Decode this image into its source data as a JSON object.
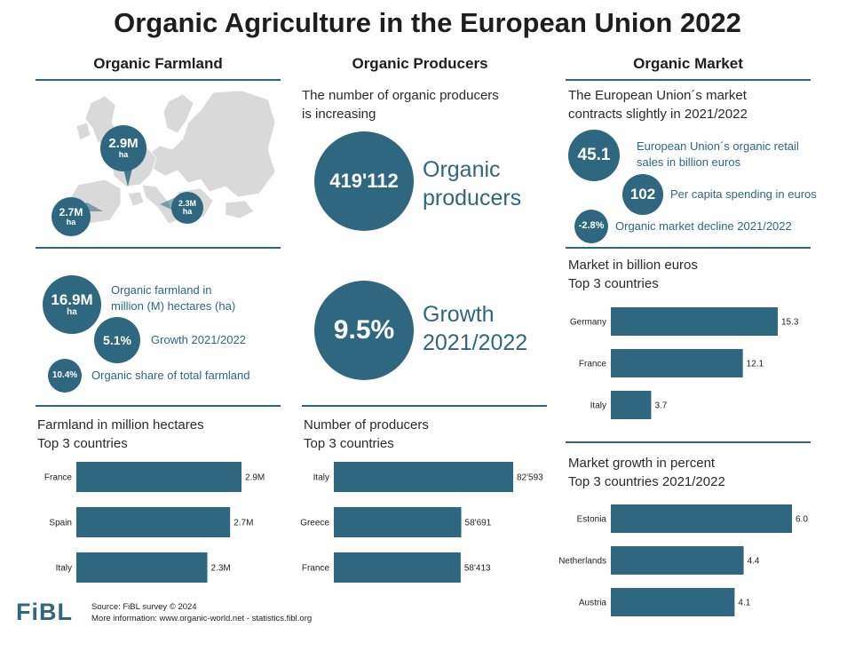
{
  "title": "Organic Agriculture in the European Union 2022",
  "colors": {
    "accent": "#2f6780",
    "map": "#d9d9d9"
  },
  "farmland": {
    "heading": "Organic Farmland",
    "map_bubbles": [
      {
        "value": "2.9M",
        "unit": "ha"
      },
      {
        "value": "2.7M",
        "unit": "ha"
      },
      {
        "value": "2.3M",
        "unit": "ha"
      }
    ],
    "kpi_total": {
      "value": "16.9M",
      "unit": "ha",
      "label_line1": "Organic farmland in",
      "label_line2": "million (M) hectares (ha)"
    },
    "kpi_growth": {
      "value": "5.1%",
      "label": "Growth 2021/2022"
    },
    "kpi_share": {
      "value": "10.4%",
      "label": "Organic share of total farmland"
    },
    "chart_title_line1": "Farmland in million hectares",
    "chart_title_line2": "Top 3 countries"
  },
  "producers": {
    "heading": "Organic Producers",
    "intro_line1": "The number of organic producers",
    "intro_line2": "is increasing",
    "kpi_count": {
      "value": "419'112",
      "label_line1": "Organic",
      "label_line2": "producers"
    },
    "kpi_growth": {
      "value": "9.5%",
      "label_line1": "Growth",
      "label_line2": "2021/2022"
    },
    "chart_title_line1": "Number of producers",
    "chart_title_line2": "Top 3 countries"
  },
  "market": {
    "heading": "Organic Market",
    "intro_line1": "The European Union´s market",
    "intro_line2": "contracts slightly in 2021/2022",
    "kpi_sales": {
      "value": "45.1",
      "label_line1": "European Union´s organic retail",
      "label_line2": "sales in billion euros"
    },
    "kpi_capita": {
      "value": "102",
      "label": "Per capita spending in euros"
    },
    "kpi_decline": {
      "value": "-2.8%",
      "label": "Organic market decline 2021/2022"
    },
    "chart1_title_line1": "Market in billion euros",
    "chart1_title_line2": "Top 3 countries",
    "chart2_title_line1": "Market growth in percent",
    "chart2_title_line2": "Top 3 countries 2021/2022"
  },
  "footer": {
    "logo": "FiBL",
    "source_line1": "Source: FiBL survey © 2024",
    "source_line2": "More information: www.organic-world.net - statistics.fibl.org"
  },
  "chart_data": [
    {
      "type": "bar",
      "orientation": "horizontal",
      "title": "Farmland in million hectares Top 3 countries",
      "categories": [
        "France",
        "Spain",
        "Italy"
      ],
      "values": [
        2.9,
        2.7,
        2.3
      ],
      "labels": [
        "2.9M",
        "2.7M",
        "2.3M"
      ],
      "xlim": [
        0,
        2.9
      ]
    },
    {
      "type": "bar",
      "orientation": "horizontal",
      "title": "Number of producers Top 3 countries",
      "categories": [
        "Italy",
        "Greece",
        "France"
      ],
      "values": [
        82593,
        58691,
        58413
      ],
      "labels": [
        "82'593",
        "58'691",
        "58'413"
      ],
      "xlim": [
        0,
        82593
      ]
    },
    {
      "type": "bar",
      "orientation": "horizontal",
      "title": "Market in billion euros Top 3 countries",
      "categories": [
        "Germany",
        "France",
        "Italy"
      ],
      "values": [
        15.3,
        12.1,
        3.7
      ],
      "labels": [
        "15.3",
        "12.1",
        "3.7"
      ],
      "xlim": [
        0,
        15.3
      ]
    },
    {
      "type": "bar",
      "orientation": "horizontal",
      "title": "Market growth in percent Top 3 countries 2021/2022",
      "categories": [
        "Estonia",
        "Netherlands",
        "Austria"
      ],
      "values": [
        6.0,
        4.4,
        4.1
      ],
      "labels": [
        "6.0",
        "4.4",
        "4.1"
      ],
      "xlim": [
        0,
        6.0
      ]
    }
  ]
}
